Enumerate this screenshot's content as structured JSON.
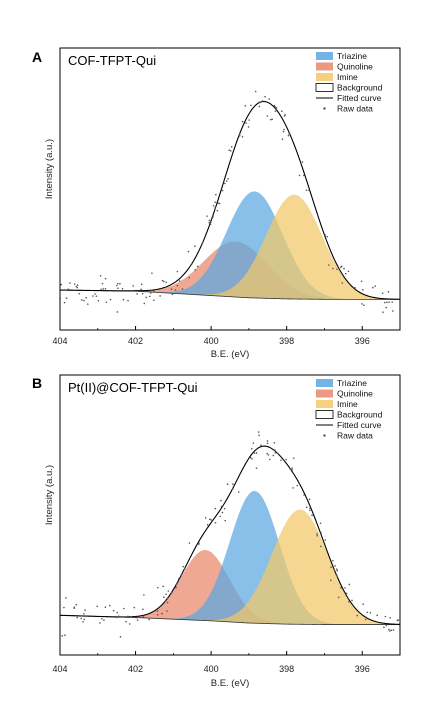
{
  "colors": {
    "triazine": "#5aa7e0",
    "quinoline": "#e8876a",
    "imine": "#f2c868",
    "background_line": "#000000",
    "fitted_curve": "#000000",
    "raw_data": "#555555"
  },
  "chart_data": [
    {
      "type": "line",
      "panel_letter": "A",
      "title": "COF-TFPT-Qui",
      "xlabel": "B.E. (eV)",
      "ylabel": "Intensity (a.u.)",
      "xlim": [
        404,
        395
      ],
      "x_reversed": true,
      "ylim": [
        -0.15,
        1.12
      ],
      "xticks": [
        404,
        402,
        400,
        398,
        396
      ],
      "legend_position": "top-right",
      "legend": [
        "Triazine",
        "Quinoline",
        "Imine",
        "Background",
        "Fitted curve",
        "Raw data"
      ],
      "background": [
        [
          404,
          0.03
        ],
        [
          402,
          0.025
        ],
        [
          400,
          0.005
        ],
        [
          399,
          -0.005
        ],
        [
          398,
          -0.01
        ],
        [
          397,
          -0.012
        ],
        [
          396,
          -0.012
        ],
        [
          395,
          -0.012
        ]
      ],
      "peaks": [
        {
          "name": "Triazine",
          "center": 398.85,
          "height": 0.48,
          "fwhm": 1.75
        },
        {
          "name": "Quinoline",
          "center": 399.35,
          "height": 0.25,
          "fwhm": 2.0
        },
        {
          "name": "Imine",
          "center": 397.8,
          "height": 0.47,
          "fwhm": 1.75
        }
      ],
      "raw_data": {
        "n": 150,
        "noise": 0.035,
        "seed": 7
      }
    },
    {
      "type": "line",
      "panel_letter": "B",
      "title": "Pt(II)@COF-TFPT-Qui",
      "xlabel": "B.E. (eV)",
      "ylabel": "Intensity (a.u.)",
      "xlim": [
        404,
        395
      ],
      "x_reversed": true,
      "ylim": [
        -0.15,
        1.12
      ],
      "xticks": [
        404,
        402,
        400,
        398,
        396
      ],
      "legend_position": "top-right",
      "legend": [
        "Triazine",
        "Quinoline",
        "Imine",
        "Background",
        "Fitted curve",
        "Raw data"
      ],
      "background": [
        [
          404,
          0.03
        ],
        [
          402,
          0.02
        ],
        [
          400,
          0.005
        ],
        [
          399,
          -0.005
        ],
        [
          398,
          -0.01
        ],
        [
          397,
          -0.012
        ],
        [
          396,
          -0.012
        ],
        [
          395,
          -0.012
        ]
      ],
      "peaks": [
        {
          "name": "Triazine",
          "center": 398.85,
          "height": 0.6,
          "fwhm": 1.55
        },
        {
          "name": "Quinoline",
          "center": 400.15,
          "height": 0.32,
          "fwhm": 1.5
        },
        {
          "name": "Imine",
          "center": 397.65,
          "height": 0.52,
          "fwhm": 1.75
        }
      ],
      "raw_data": {
        "n": 150,
        "noise": 0.04,
        "seed": 11
      }
    }
  ]
}
